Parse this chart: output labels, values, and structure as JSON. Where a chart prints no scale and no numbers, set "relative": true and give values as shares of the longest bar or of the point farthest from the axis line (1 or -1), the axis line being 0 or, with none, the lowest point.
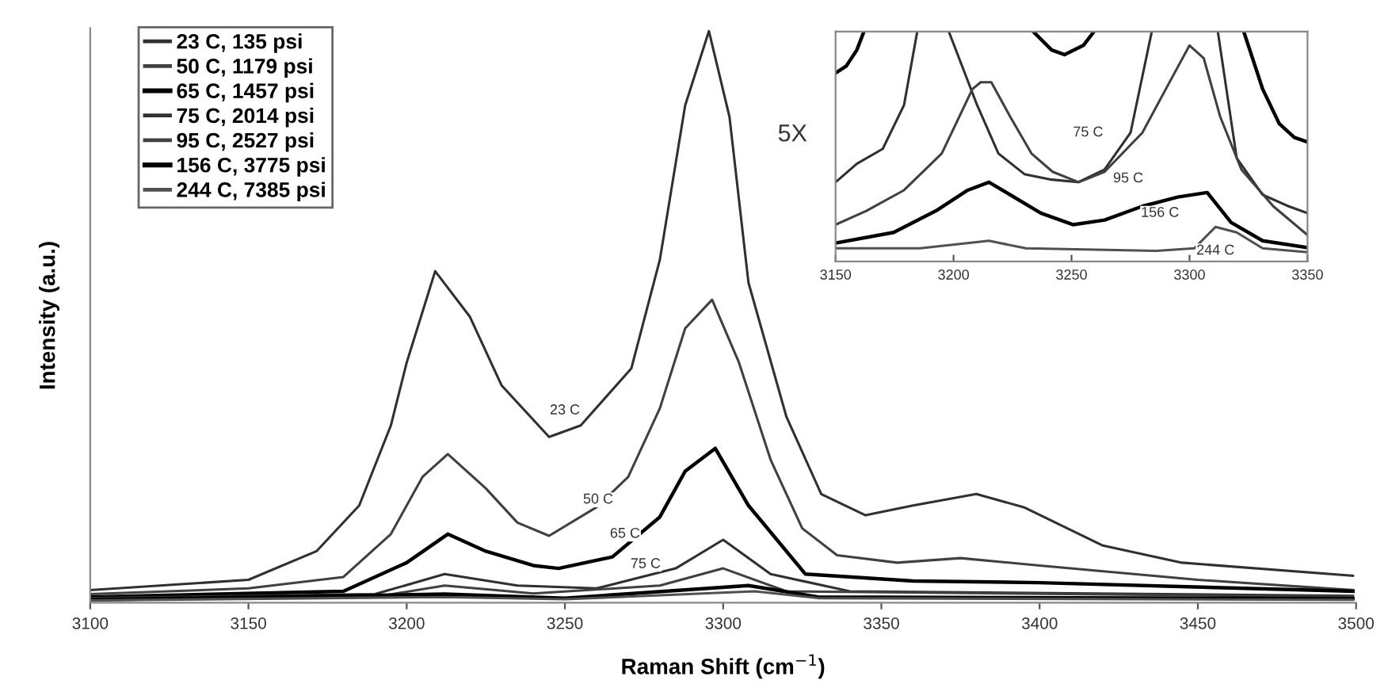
{
  "chart_data": [
    {
      "type": "line",
      "relative": true,
      "xlabel": "Raman Shift (cm$^{−1}$)",
      "ylabel": "Intensity (a.u.)",
      "xlim": [
        3100,
        3500
      ],
      "xticks": [
        3100,
        3150,
        3200,
        3250,
        3300,
        3350,
        3400,
        3450,
        3500
      ],
      "tick_labels": "x",
      "grid": false,
      "legend": "top left",
      "marker": "none",
      "line_style": "solid",
      "series": [
        {
          "name": "23 C, 135 psi",
          "color": "#303030",
          "x": [
            3100,
            3150,
            3171.5,
            3185,
            3195,
            3200,
            3209,
            3220,
            3230,
            3245,
            3255,
            3271,
            3280,
            3288,
            3295.5,
            3302,
            3308,
            3320,
            3331,
            3345,
            3360,
            3380,
            3395,
            3420,
            3445,
            3499
          ],
          "values": [
            0.022,
            0.04,
            0.09,
            0.17,
            0.31,
            0.42,
            0.58,
            0.5,
            0.38,
            0.29,
            0.31,
            0.41,
            0.6,
            0.87,
            1.0,
            0.85,
            0.56,
            0.325,
            0.19,
            0.153,
            0.17,
            0.19,
            0.167,
            0.1,
            0.07,
            0.047
          ]
        },
        {
          "name": "50 C, 1179 psi",
          "color": "#404040",
          "x": [
            3100,
            3150,
            3180,
            3195,
            3205,
            3213,
            3225,
            3235,
            3245,
            3260,
            3270,
            3280,
            3288,
            3296.5,
            3305,
            3315,
            3325,
            3336,
            3355,
            3375,
            3400,
            3450,
            3499
          ],
          "values": [
            0.015,
            0.025,
            0.045,
            0.12,
            0.22,
            0.26,
            0.2,
            0.14,
            0.117,
            0.167,
            0.22,
            0.34,
            0.48,
            0.53,
            0.42,
            0.25,
            0.13,
            0.083,
            0.07,
            0.078,
            0.065,
            0.04,
            0.022
          ]
        },
        {
          "name": "65 C, 1457 psi",
          "color": "#000000",
          "x": [
            3100,
            3180,
            3200,
            3213,
            3225,
            3240,
            3248,
            3265,
            3280,
            3288,
            3297.5,
            3308,
            3326,
            3360,
            3400,
            3499
          ],
          "values": [
            0.01,
            0.02,
            0.07,
            0.12,
            0.09,
            0.065,
            0.06,
            0.08,
            0.15,
            0.23,
            0.27,
            0.17,
            0.05,
            0.038,
            0.035,
            0.02
          ]
        },
        {
          "name": "75 C, 2014 psi",
          "color": "#303030",
          "x": [
            3100,
            3190,
            3212,
            3235,
            3260,
            3285,
            3300,
            3315,
            3340,
            3499
          ],
          "values": [
            0.008,
            0.015,
            0.05,
            0.03,
            0.025,
            0.06,
            0.11,
            0.05,
            0.02,
            0.012
          ]
        },
        {
          "name": "95 C, 2527 psi",
          "color": "#404040",
          "x": [
            3100,
            3190,
            3212,
            3240,
            3280,
            3300,
            3320,
            3499
          ],
          "values": [
            0.006,
            0.01,
            0.03,
            0.016,
            0.03,
            0.06,
            0.02,
            0.01
          ]
        },
        {
          "name": "156 C, 3775 psi",
          "color": "#000000",
          "x": [
            3100,
            3212,
            3250,
            3308,
            3330,
            3499
          ],
          "values": [
            0.005,
            0.015,
            0.008,
            0.03,
            0.01,
            0.007
          ]
        },
        {
          "name": "244 C, 7385 psi",
          "color": "#505050",
          "x": [
            3100,
            3212,
            3250,
            3310,
            3330,
            3499
          ],
          "values": [
            0.004,
            0.01,
            0.006,
            0.02,
            0.008,
            0.005
          ]
        }
      ],
      "annotations": [
        {
          "text": "23 C",
          "x": 3250,
          "y": 0.336
        },
        {
          "text": "50 C",
          "x": 3260.5,
          "y": 0.18
        },
        {
          "text": "65 C",
          "x": 3269,
          "y": 0.12
        },
        {
          "text": "75 C",
          "x": 3275.5,
          "y": 0.067
        }
      ]
    },
    {
      "type": "line",
      "relative": true,
      "xlim": [
        3150,
        3350
      ],
      "xticks": [
        3150,
        3200,
        3250,
        3300,
        3350
      ],
      "tick_labels": "x",
      "grid": false,
      "marker": "none",
      "line_style": "solid",
      "series": [
        {
          "color": "#000000",
          "x": [
            3150,
            3154.5,
            3159,
            3162,
            3200,
            3233.8,
            3241.6,
            3247,
            3255,
            3259.5,
            3290,
            3323,
            3331,
            3338,
            3344.4,
            3350
          ],
          "values": [
            0.82,
            0.85,
            0.92,
            1.0,
            null,
            1.0,
            0.92,
            0.9,
            0.94,
            1.0,
            null,
            1.0,
            0.75,
            0.6,
            0.54,
            0.52
          ]
        },
        {
          "color": "#303030",
          "x": [
            3150,
            3159,
            3170,
            3179,
            3184.6,
            3190,
            3198,
            3210,
            3219,
            3230,
            3241.6,
            3252.8,
            3264,
            3275,
            3284,
            3300,
            3312,
            3320,
            3331,
            3342,
            3350
          ],
          "values": [
            0.345,
            0.425,
            0.49,
            0.68,
            1.0,
            null,
            1.0,
            0.68,
            0.47,
            0.38,
            0.356,
            0.345,
            0.4,
            0.56,
            1.0,
            null,
            1.0,
            0.45,
            0.29,
            0.24,
            0.21
          ]
        },
        {
          "color": "#404040",
          "x": [
            3150,
            3163,
            3179,
            3195,
            3208,
            3211.5,
            3216,
            3224,
            3233,
            3242,
            3253,
            3264,
            3280,
            3291,
            3300,
            3306,
            3313,
            3322,
            3335.5,
            3350
          ],
          "values": [
            0.16,
            0.22,
            0.31,
            0.47,
            0.75,
            0.78,
            0.78,
            0.63,
            0.47,
            0.39,
            0.345,
            0.39,
            0.56,
            0.77,
            0.94,
            0.885,
            0.63,
            0.4,
            0.24,
            0.115
          ]
        },
        {
          "color": "#000000",
          "x": [
            3150,
            3174.6,
            3192.5,
            3206,
            3215,
            3224,
            3237,
            3250.6,
            3264,
            3280,
            3295,
            3307.5,
            3317.6,
            3331,
            3350
          ],
          "values": [
            0.08,
            0.126,
            0.22,
            0.31,
            0.345,
            0.29,
            0.21,
            0.16,
            0.18,
            0.24,
            0.28,
            0.3,
            0.17,
            0.09,
            0.06
          ]
        },
        {
          "color": "#505050",
          "x": [
            3150,
            3185.8,
            3215,
            3230.6,
            3286,
            3302,
            3311,
            3320,
            3331,
            3350
          ],
          "values": [
            0.057,
            0.057,
            0.09,
            0.057,
            0.046,
            0.057,
            0.15,
            0.126,
            0.057,
            0.04
          ]
        }
      ],
      "annotations": [
        "5X",
        {
          "text": "75 C",
          "x": 3257,
          "y": 0.56
        },
        {
          "text": "95 C",
          "x": 3274,
          "y": 0.36
        },
        {
          "text": "156 C",
          "x": 3287.5,
          "y": 0.21
        },
        {
          "text": "244 C",
          "x": 3311,
          "y": 0.046
        }
      ]
    }
  ]
}
